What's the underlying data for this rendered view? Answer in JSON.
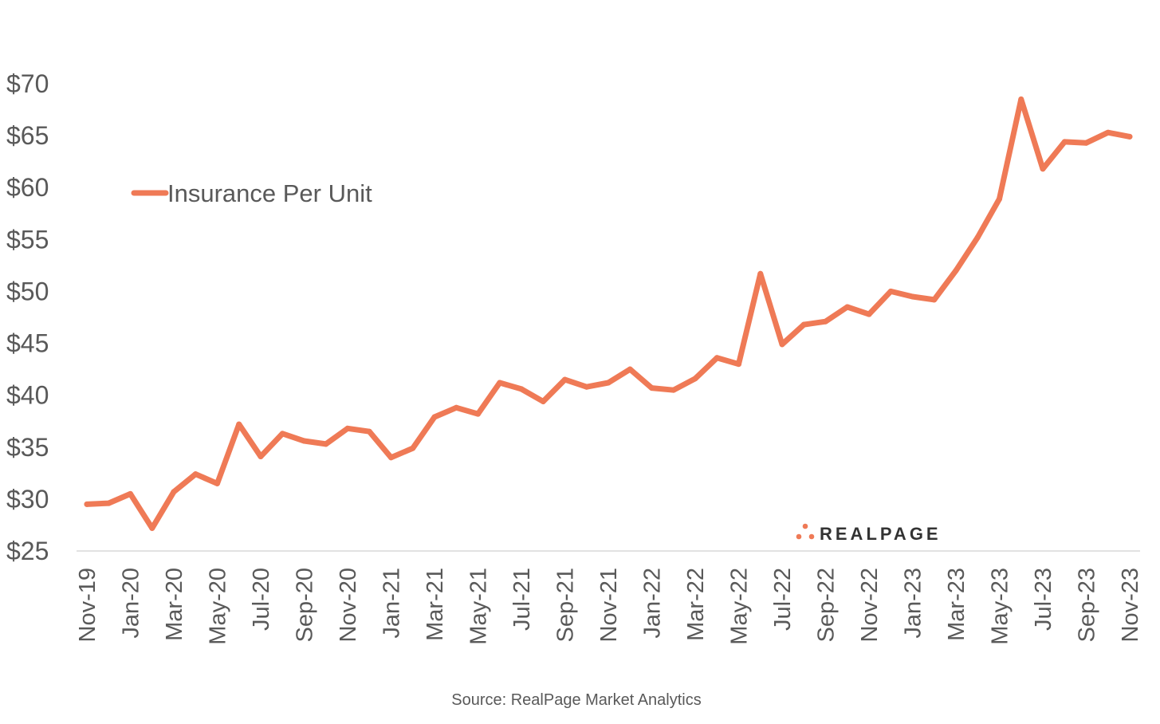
{
  "chart_data": {
    "type": "line",
    "title": "",
    "xlabel": "",
    "ylabel": "",
    "ylim": [
      25,
      70
    ],
    "y_ticks": [
      "$25",
      "$30",
      "$35",
      "$40",
      "$45",
      "$50",
      "$55",
      "$60",
      "$65",
      "$70"
    ],
    "y_tick_values": [
      25,
      30,
      35,
      40,
      45,
      50,
      55,
      60,
      65,
      70
    ],
    "x_tick_labels": [
      "Nov-19",
      "Jan-20",
      "Mar-20",
      "May-20",
      "Jul-20",
      "Sep-20",
      "Nov-20",
      "Jan-21",
      "Mar-21",
      "May-21",
      "Jul-21",
      "Sep-21",
      "Nov-21",
      "Jan-22",
      "Mar-22",
      "May-22",
      "Jul-22",
      "Sep-22",
      "Nov-22",
      "Jan-23",
      "Mar-23",
      "May-23",
      "Jul-23",
      "Sep-23",
      "Nov-23"
    ],
    "grid": false,
    "legend_position": "top-left",
    "series": [
      {
        "name": "Insurance Per Unit",
        "color": "#ef7a56",
        "x": [
          "Nov-19",
          "Dec-19",
          "Jan-20",
          "Feb-20",
          "Mar-20",
          "Apr-20",
          "May-20",
          "Jun-20",
          "Jul-20",
          "Aug-20",
          "Sep-20",
          "Oct-20",
          "Nov-20",
          "Dec-20",
          "Jan-21",
          "Feb-21",
          "Mar-21",
          "Apr-21",
          "May-21",
          "Jun-21",
          "Jul-21",
          "Aug-21",
          "Sep-21",
          "Oct-21",
          "Nov-21",
          "Dec-21",
          "Jan-22",
          "Feb-22",
          "Mar-22",
          "Apr-22",
          "May-22",
          "Jun-22",
          "Jul-22",
          "Aug-22",
          "Sep-22",
          "Oct-22",
          "Nov-22",
          "Dec-22",
          "Jan-23",
          "Feb-23",
          "Mar-23",
          "Apr-23",
          "May-23",
          "Jun-23",
          "Jul-23",
          "Aug-23",
          "Sep-23",
          "Oct-23",
          "Nov-23"
        ],
        "values": [
          29.5,
          29.6,
          30.5,
          27.2,
          30.7,
          32.4,
          31.5,
          37.2,
          34.1,
          36.3,
          35.6,
          35.3,
          36.8,
          36.5,
          34.0,
          34.9,
          37.9,
          38.8,
          38.2,
          41.2,
          40.6,
          39.4,
          41.5,
          40.8,
          41.2,
          42.5,
          40.7,
          40.5,
          41.6,
          43.6,
          43.0,
          51.7,
          44.9,
          46.8,
          47.1,
          48.5,
          47.8,
          50.0,
          49.5,
          49.2,
          52.0,
          55.2,
          58.9,
          68.5,
          61.8,
          64.4,
          64.3,
          65.3,
          64.9
        ]
      }
    ]
  },
  "source": "Source: RealPage Market Analytics",
  "logo": {
    "text": "REALPAGE",
    "dot_color": "#ef7a56"
  }
}
